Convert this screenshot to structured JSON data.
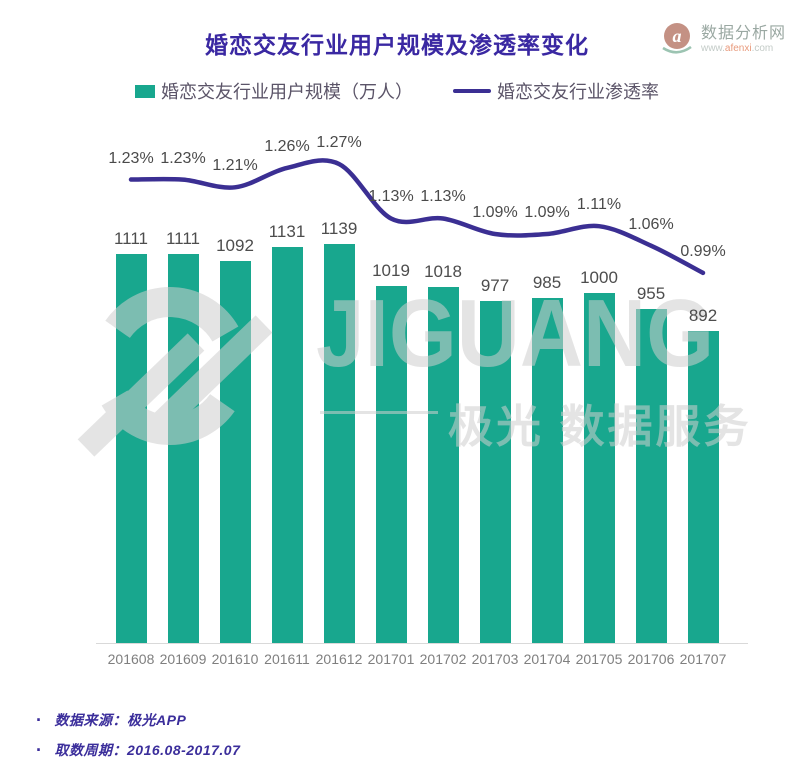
{
  "header": {
    "title": "婚恋交友行业用户规模及渗透率变化"
  },
  "brand": {
    "logo_letter": "a",
    "name": "数据分析网",
    "url_prefix": "www.",
    "url_host": "afenxi",
    "url_suffix": ".com"
  },
  "legend": {
    "bars_label": "婚恋交友行业用户规模（万人）",
    "line_label": "婚恋交友行业渗透率"
  },
  "watermark": {
    "latin": "JIGUANG",
    "cjk": "极光 数据服务"
  },
  "footer": {
    "items": [
      "数据来源：极光APP",
      "取数周期：2016.08-2017.07"
    ]
  },
  "colors": {
    "bar": "#18a78e",
    "line": "#3b2f93",
    "title": "#3a28a2",
    "footer_text": "#3b2e9b",
    "watermark": "#cfcfcf",
    "value_label": "#4d4d4d",
    "tick_label": "#7f7f7f",
    "axis": "#d9d9d9"
  },
  "chart_data": {
    "type": "bar",
    "title": "婚恋交友行业用户规模及渗透率变化",
    "xlabel": "",
    "ylabel": "",
    "grid": false,
    "legend_position": "top-center",
    "categories": [
      "201608",
      "201609",
      "201610",
      "201611",
      "201612",
      "201701",
      "201702",
      "201703",
      "201704",
      "201705",
      "201706",
      "201707"
    ],
    "series": [
      {
        "name": "婚恋交友行业用户规模（万人）",
        "type": "bar",
        "values": [
          1111,
          1111,
          1092,
          1131,
          1139,
          1019,
          1018,
          977,
          985,
          1000,
          955,
          892
        ]
      },
      {
        "name": "婚恋交友行业渗透率",
        "type": "line",
        "values": [
          1.23,
          1.23,
          1.21,
          1.26,
          1.27,
          1.13,
          1.13,
          1.09,
          1.09,
          1.11,
          1.06,
          0.99
        ],
        "labels": [
          "1.23%",
          "1.23%",
          "1.21%",
          "1.26%",
          "1.27%",
          "1.13%",
          "1.13%",
          "1.09%",
          "1.09%",
          "1.11%",
          "1.06%",
          "0.99%"
        ]
      }
    ],
    "bar_axis_min": 0,
    "line_axis_labels_shown_as": "data labels above line"
  }
}
